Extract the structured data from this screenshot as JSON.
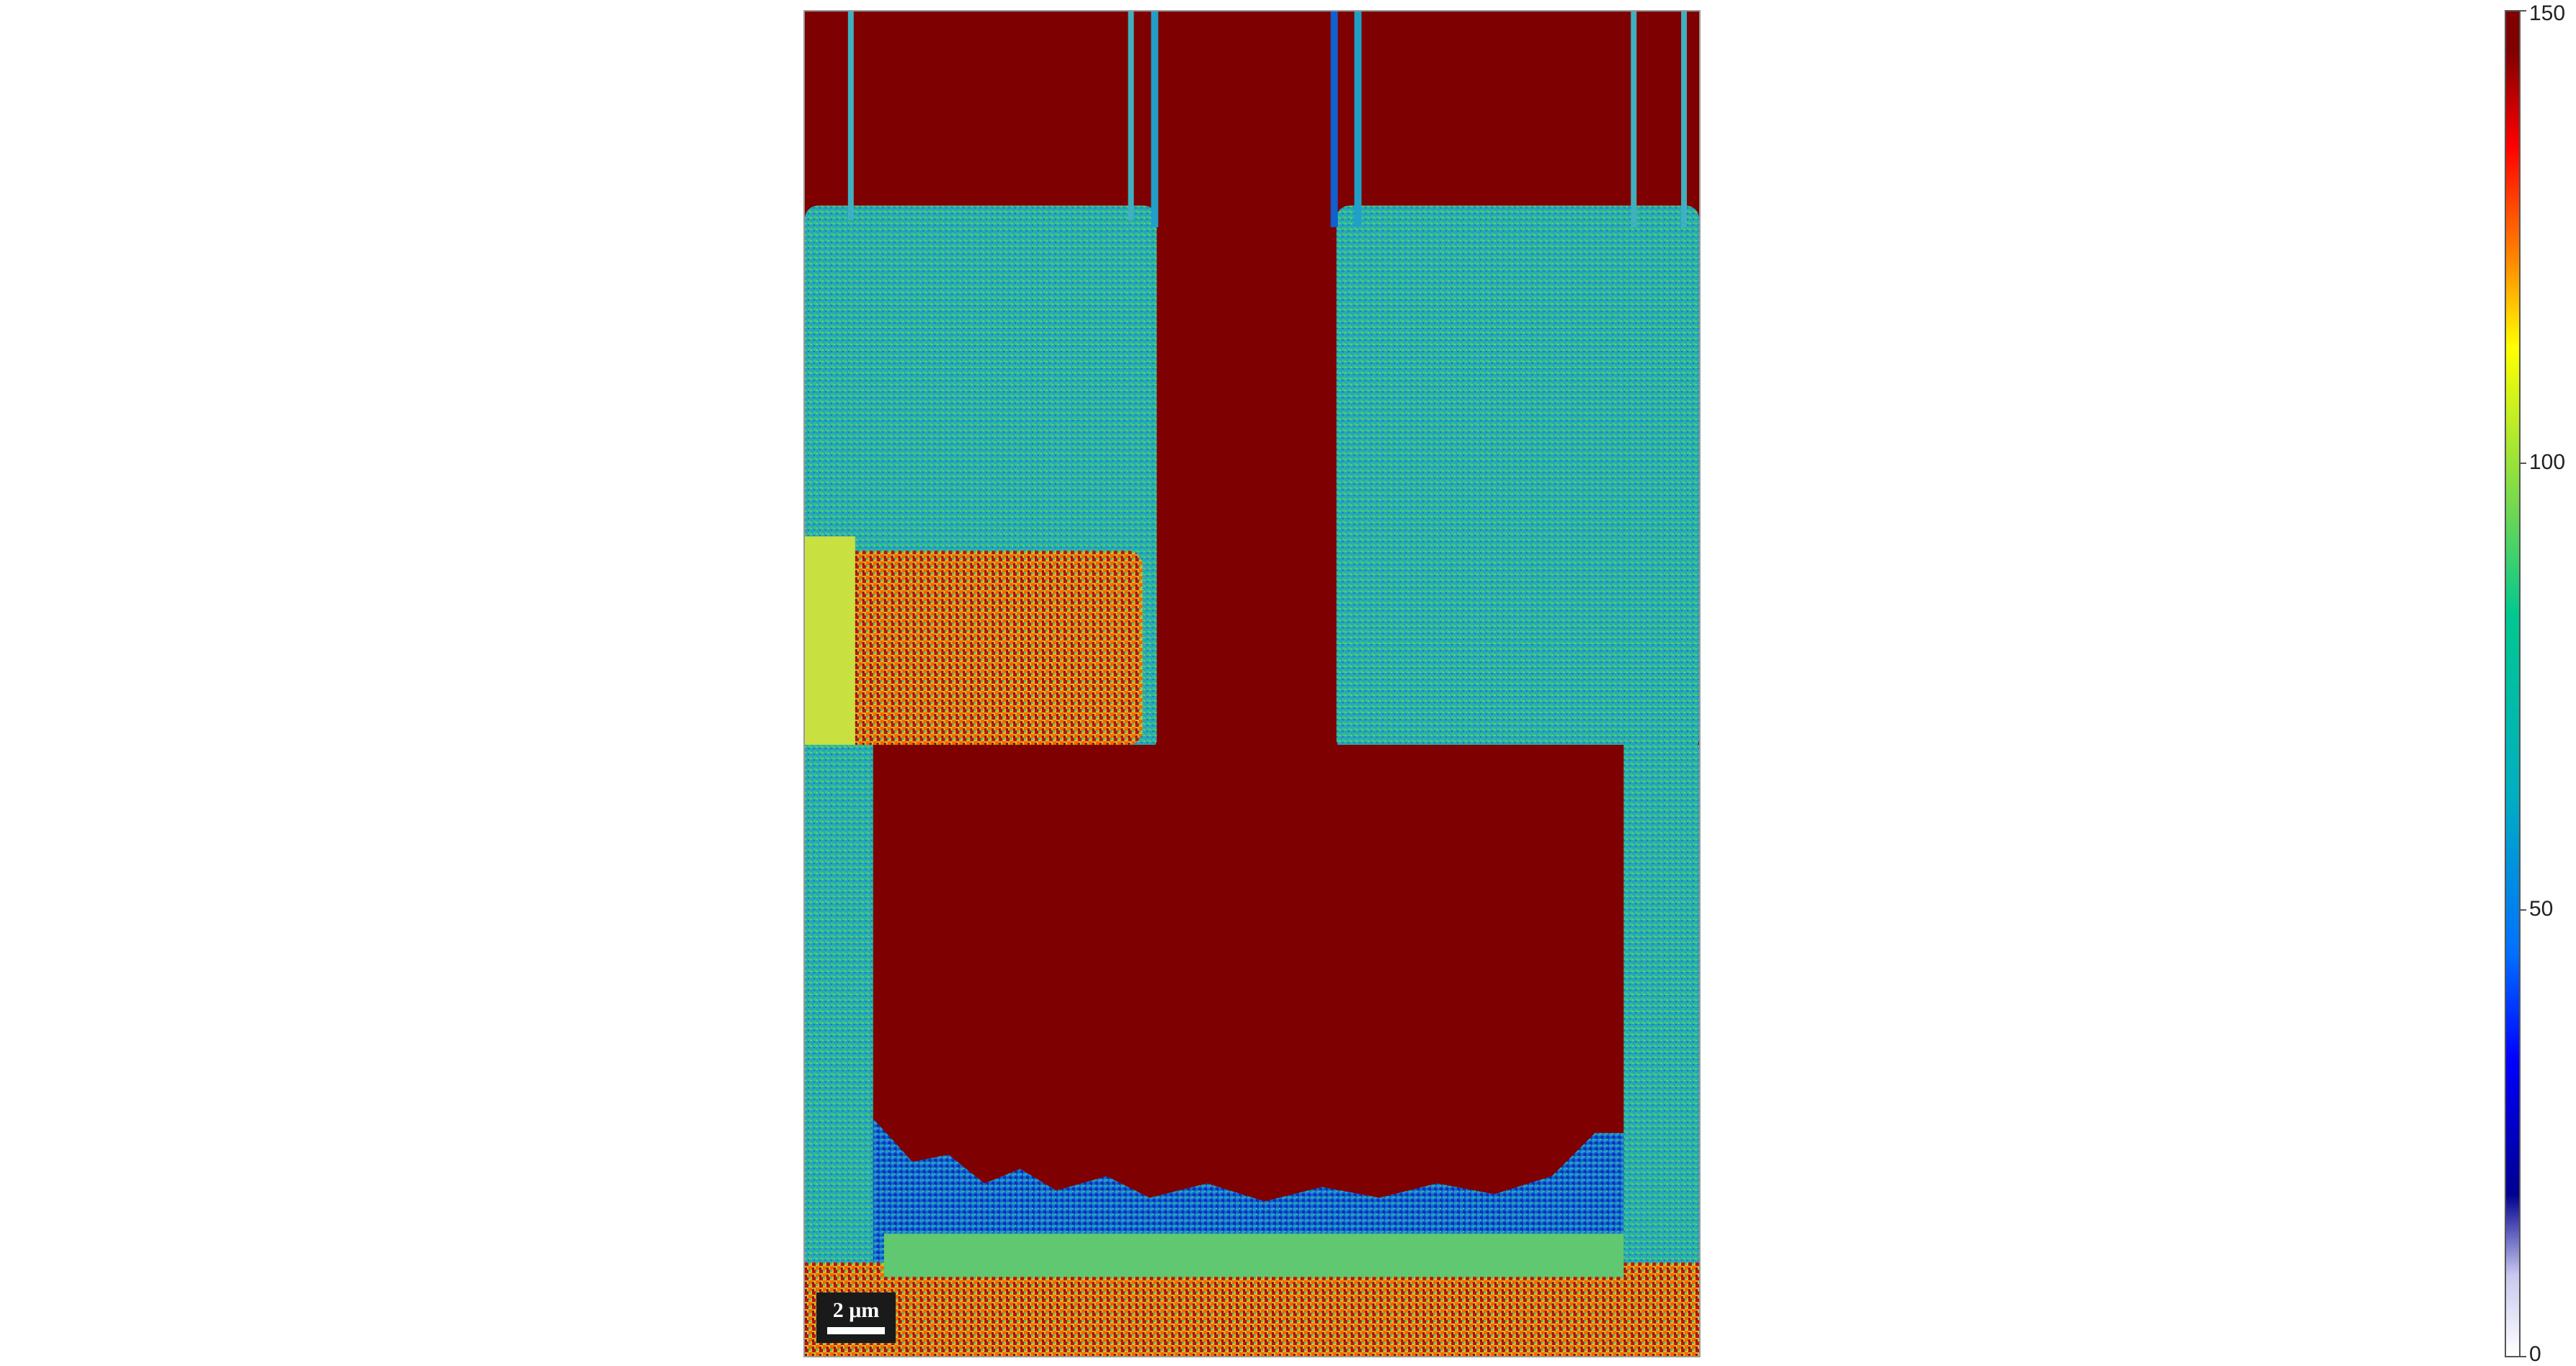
{
  "scalebar": {
    "label": "2 μm"
  },
  "colorbar": {
    "min_label": "0",
    "ticks": [
      "0",
      "50",
      "100",
      "150"
    ],
    "max_label": "150",
    "colormap": "jet-like (white→blue→cyan→green→yellow→red→dark red)"
  },
  "colors": {
    "background": "#ffffff",
    "high": "#7f0000",
    "mid": "#1ab0a8",
    "low": "#0030d0"
  }
}
